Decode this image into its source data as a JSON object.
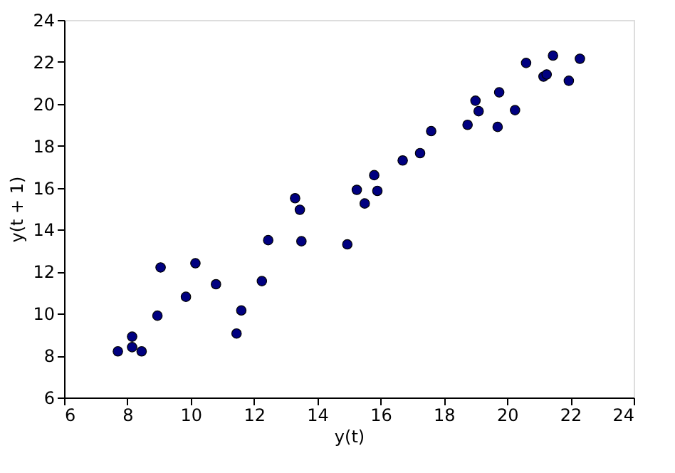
{
  "chart_data": {
    "type": "scatter",
    "xlabel": "y(t)",
    "ylabel": "y(t + 1)",
    "x": [
      7.7,
      8.15,
      8.15,
      8.45,
      8.95,
      9.05,
      9.85,
      10.15,
      10.8,
      11.45,
      11.6,
      12.25,
      12.45,
      13.3,
      13.45,
      13.5,
      14.95,
      15.25,
      15.5,
      15.8,
      15.9,
      16.7,
      17.25,
      17.6,
      18.75,
      19.0,
      19.1,
      19.7,
      19.75,
      20.25,
      20.6,
      21.15,
      21.25,
      21.45,
      21.95,
      22.3
    ],
    "series": [
      {
        "color": "#000080",
        "values": [
          8.2,
          8.9,
          8.4,
          8.2,
          9.9,
          12.2,
          10.8,
          12.4,
          11.4,
          9.05,
          10.15,
          11.55,
          13.5,
          15.5,
          14.95,
          13.45,
          13.3,
          15.9,
          15.25,
          16.6,
          15.85,
          17.3,
          17.65,
          18.7,
          19.0,
          20.15,
          19.65,
          18.9,
          20.55,
          19.7,
          21.95,
          21.3,
          21.4,
          22.3,
          21.1,
          22.15
        ]
      }
    ],
    "xlim": [
      6,
      24
    ],
    "ylim": [
      6,
      24
    ],
    "xticks": [
      6,
      8,
      10,
      12,
      14,
      16,
      18,
      20,
      22,
      24
    ],
    "yticks": [
      6,
      8,
      10,
      12,
      14,
      16,
      18,
      20,
      22,
      24
    ],
    "grid": false,
    "marker": "circle"
  }
}
